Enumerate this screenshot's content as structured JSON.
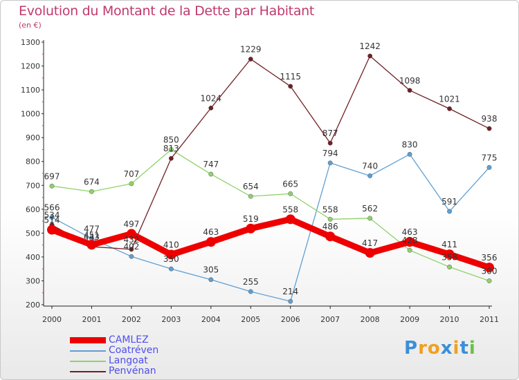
{
  "title": "Evolution du Montant de la Dette par Habitant",
  "subtitle": "(en €)",
  "logo": {
    "text": "Proxiti",
    "letter_colors": [
      "#3a8fd8",
      "#f0a020",
      "#f0a020",
      "#3a8fd8",
      "#f0a020",
      "#3a8fd8",
      "#6cc04a"
    ]
  },
  "chart_data": {
    "type": "line",
    "title": "Evolution du Montant de la Dette par Habitant",
    "ylabel": "(en €)",
    "xlabel": "",
    "x": [
      "2000",
      "2001",
      "2002",
      "2003",
      "2004",
      "2005",
      "2006",
      "2007",
      "2008",
      "2009",
      "2010",
      "2011"
    ],
    "ylim": [
      200,
      1300
    ],
    "yticks": [
      "200",
      "300",
      "400",
      "500",
      "600",
      "700",
      "800",
      "900",
      "1000",
      "1100",
      "1200",
      "1300"
    ],
    "grid": false,
    "legend_position": "bottom-left",
    "series": [
      {
        "name": "CAMLEZ",
        "color": "#ee0000",
        "emphasis": true,
        "values": [
          514,
          451,
          497,
          410,
          463,
          519,
          558,
          486,
          417,
          463,
          411,
          356
        ]
      },
      {
        "name": "Coatréven",
        "color": "#5f9fd2",
        "values": [
          566,
          477,
          402,
          350,
          305,
          255,
          214,
          794,
          740,
          830,
          591,
          775
        ]
      },
      {
        "name": "Langoat",
        "color": "#8fd26a",
        "values": [
          697,
          674,
          707,
          850,
          747,
          654,
          665,
          558,
          562,
          428,
          358,
          300
        ]
      },
      {
        "name": "Penvénan",
        "color": "#6f1f23",
        "values": [
          534,
          443,
          432,
          813,
          1024,
          1229,
          1115,
          877,
          1242,
          1098,
          1021,
          938
        ]
      }
    ],
    "data_labels": [
      [
        "514",
        "451",
        "497",
        "410",
        "463",
        "519",
        "558",
        "486",
        "417",
        "463",
        "411",
        "356"
      ],
      [
        "566",
        "477",
        "402",
        "350",
        "305",
        "255",
        "214",
        "794",
        "740",
        "830",
        "591",
        "775"
      ],
      [
        "697",
        "674",
        "707",
        "850",
        "747",
        "654",
        "665",
        "558",
        "562",
        "428",
        "358",
        "300"
      ],
      [
        "534",
        "443",
        "432",
        "813",
        "1024",
        "1229",
        "1115",
        "877",
        "1242",
        "1098",
        "1021",
        "938"
      ]
    ]
  }
}
